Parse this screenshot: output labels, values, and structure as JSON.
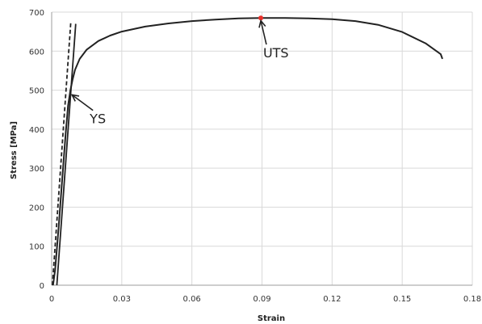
{
  "chart_data": {
    "type": "line",
    "xlabel": "Strain",
    "ylabel": "Stress [MPa]",
    "xlim": [
      0,
      0.18
    ],
    "ylim": [
      0,
      700
    ],
    "x_ticks": [
      0,
      0.03,
      0.06,
      0.09,
      0.12,
      0.15,
      0.18
    ],
    "x_tick_labels": [
      "0",
      "0.03",
      "0.06",
      "0.09",
      "0.12",
      "0.15",
      "0.18"
    ],
    "y_ticks": [
      0,
      100,
      200,
      300,
      400,
      500,
      600,
      700
    ],
    "y_tick_labels": [
      "0",
      "100",
      "200",
      "300",
      "400",
      "500",
      "600",
      "700"
    ],
    "grid": true,
    "colors": {
      "curve": "#222222",
      "uts_marker": "#e8302a",
      "grid": "#d9d9d9",
      "axis": "#9e9e9e"
    },
    "series": [
      {
        "style": "solid",
        "points": [
          [
            0.0006,
            0
          ],
          [
            0.0015,
            40
          ],
          [
            0.003,
            150
          ],
          [
            0.0045,
            270
          ],
          [
            0.006,
            390
          ],
          [
            0.007,
            460
          ],
          [
            0.008,
            500
          ],
          [
            0.009,
            528
          ],
          [
            0.01,
            552
          ],
          [
            0.012,
            580
          ],
          [
            0.015,
            604
          ],
          [
            0.02,
            626
          ],
          [
            0.025,
            640
          ],
          [
            0.03,
            650
          ],
          [
            0.04,
            663
          ],
          [
            0.05,
            671
          ],
          [
            0.06,
            677
          ],
          [
            0.07,
            681
          ],
          [
            0.08,
            684
          ],
          [
            0.09,
            685
          ],
          [
            0.1,
            685
          ],
          [
            0.11,
            684
          ],
          [
            0.12,
            682
          ],
          [
            0.13,
            677
          ],
          [
            0.14,
            667
          ],
          [
            0.15,
            649
          ],
          [
            0.16,
            620
          ],
          [
            0.1665,
            592
          ],
          [
            0.1672,
            580
          ]
        ]
      },
      {
        "style": "solid",
        "points": [
          [
            0.0022,
            0
          ],
          [
            0.0103,
            670
          ]
        ]
      },
      {
        "style": "dashed",
        "points": [
          [
            0.0003,
            0
          ],
          [
            0.0082,
            675
          ]
        ]
      }
    ],
    "markers": [
      {
        "x": 0.0895,
        "y": 685
      }
    ],
    "annotations": [
      {
        "text": "YS",
        "x": 0.0163,
        "y": 415,
        "arrow_to": [
          0.0087,
          488
        ]
      },
      {
        "text": "UTS",
        "x": 0.0905,
        "y": 584,
        "arrow_to": [
          0.0895,
          678
        ]
      }
    ]
  }
}
